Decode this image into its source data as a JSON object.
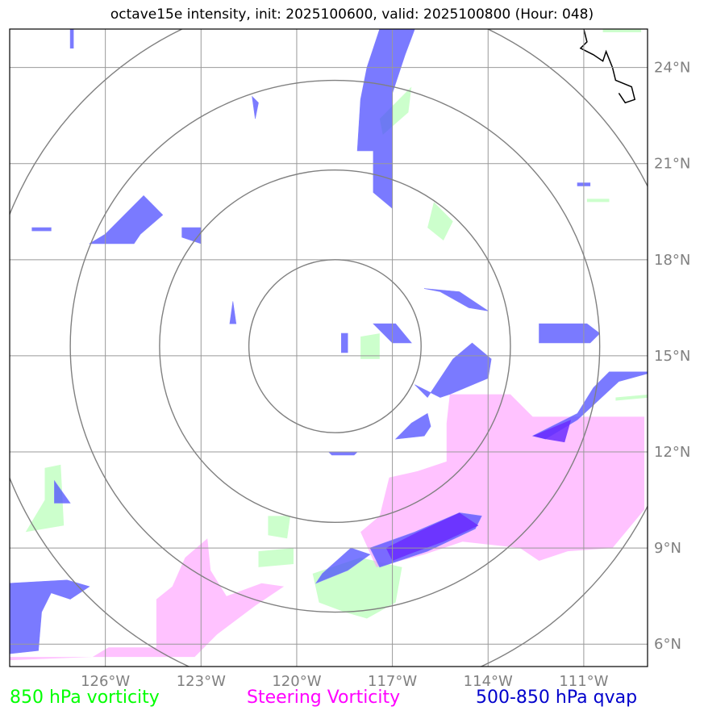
{
  "title": "octave15e intensity, init: 2025100600, valid: 2025100800 (Hour: 048)",
  "map": {
    "lon_range": [
      -129,
      -109
    ],
    "lat_range": [
      5.3,
      25.2
    ],
    "lon_ticks": [
      {
        "value": -126,
        "label": "126°W"
      },
      {
        "value": -123,
        "label": "123°W"
      },
      {
        "value": -120,
        "label": "120°W"
      },
      {
        "value": -117,
        "label": "117°W"
      },
      {
        "value": -114,
        "label": "114°W"
      },
      {
        "value": -111,
        "label": "111°W"
      }
    ],
    "lat_ticks": [
      {
        "value": 6,
        "label": "6°N"
      },
      {
        "value": 9,
        "label": "9°N"
      },
      {
        "value": 12,
        "label": "12°N"
      },
      {
        "value": 15,
        "label": "15°N"
      },
      {
        "value": 18,
        "label": "18°N"
      },
      {
        "value": 21,
        "label": "21°N"
      },
      {
        "value": 24,
        "label": "24°N"
      }
    ],
    "storm_center": {
      "lon": -118.8,
      "lat": 15.3
    },
    "range_rings_deg": [
      2.7,
      5.5,
      8.3,
      11.0
    ],
    "colors": {
      "vorticity_850": "#ccffcc",
      "steering_vorticity": "#ff99ff",
      "qvap": "#4d4dff",
      "overlap": "#6a2cff",
      "grid": "#999999",
      "ring": "#808080",
      "coast": "#000000"
    },
    "fields": {
      "vorticity_850": [
        [
          [
            -127.9,
            11.5
          ],
          [
            -127.4,
            11.6
          ],
          [
            -127.3,
            9.7
          ],
          [
            -128.5,
            9.5
          ],
          [
            -127.9,
            10.5
          ]
        ],
        [
          [
            -120.9,
            10.0
          ],
          [
            -120.2,
            10.0
          ],
          [
            -120.3,
            9.3
          ],
          [
            -120.9,
            9.4
          ]
        ],
        [
          [
            -121.2,
            8.9
          ],
          [
            -120.1,
            9.0
          ],
          [
            -120.1,
            8.5
          ],
          [
            -121.2,
            8.4
          ]
        ],
        [
          [
            -119.5,
            8.2
          ],
          [
            -118.0,
            8.7
          ],
          [
            -116.7,
            8.4
          ],
          [
            -116.9,
            7.3
          ],
          [
            -117.8,
            6.8
          ],
          [
            -118.5,
            7.0
          ],
          [
            -119.3,
            7.3
          ]
        ],
        [
          [
            -118.0,
            15.6
          ],
          [
            -117.4,
            15.7
          ],
          [
            -117.4,
            14.9
          ],
          [
            -118.0,
            14.9
          ]
        ],
        [
          [
            -117.4,
            22.4
          ],
          [
            -116.4,
            23.4
          ],
          [
            -116.5,
            22.6
          ],
          [
            -117.3,
            21.9
          ]
        ],
        [
          [
            -115.7,
            19.8
          ],
          [
            -115.1,
            19.2
          ],
          [
            -115.4,
            18.6
          ],
          [
            -115.9,
            19.0
          ]
        ],
        [
          [
            -110.9,
            19.9
          ],
          [
            -110.2,
            19.9
          ],
          [
            -110.2,
            19.8
          ],
          [
            -110.9,
            19.8
          ]
        ],
        [
          [
            -110.0,
            13.7
          ],
          [
            -108.9,
            13.8
          ],
          [
            -108.9,
            13.7
          ],
          [
            -110.0,
            13.6
          ]
        ],
        [
          [
            -110.4,
            25.2
          ],
          [
            -109.2,
            25.2
          ],
          [
            -109.2,
            25.1
          ],
          [
            -110.4,
            25.1
          ]
        ]
      ],
      "steering_vorticity": [
        [
          [
            -115.2,
            13.8
          ],
          [
            -113.3,
            13.8
          ],
          [
            -112.6,
            13.1
          ],
          [
            -109.1,
            13.1
          ],
          [
            -109.1,
            10.2
          ],
          [
            -110.1,
            9.0
          ],
          [
            -111.5,
            8.9
          ],
          [
            -112.4,
            8.6
          ],
          [
            -113.0,
            9.0
          ],
          [
            -114.8,
            9.2
          ],
          [
            -116.0,
            8.8
          ],
          [
            -117.5,
            8.4
          ],
          [
            -118.0,
            9.5
          ],
          [
            -117.4,
            10.0
          ],
          [
            -117.1,
            11.2
          ],
          [
            -116.2,
            11.4
          ],
          [
            -115.3,
            11.7
          ],
          [
            -115.3,
            12.9
          ]
        ],
        [
          [
            -129.0,
            5.6
          ],
          [
            -125.1,
            5.6
          ],
          [
            -123.2,
            5.6
          ],
          [
            -122.5,
            6.3
          ],
          [
            -121.3,
            7.2
          ],
          [
            -120.4,
            7.8
          ],
          [
            -121.1,
            7.9
          ],
          [
            -122.2,
            7.5
          ],
          [
            -122.7,
            8.3
          ],
          [
            -122.8,
            9.3
          ],
          [
            -123.5,
            8.7
          ],
          [
            -123.9,
            7.8
          ],
          [
            -124.4,
            7.4
          ],
          [
            -124.4,
            5.9
          ],
          [
            -125.9,
            5.9
          ],
          [
            -126.4,
            5.6
          ],
          [
            -129.0,
            5.5
          ]
        ]
      ],
      "qvap": [
        [
          [
            -117.4,
            25.2
          ],
          [
            -116.3,
            25.2
          ],
          [
            -116.6,
            24.4
          ],
          [
            -117.0,
            23.2
          ],
          [
            -117.0,
            19.6
          ],
          [
            -117.6,
            20.1
          ],
          [
            -117.6,
            21.4
          ],
          [
            -118.1,
            21.4
          ],
          [
            -118.0,
            23.0
          ],
          [
            -117.8,
            24.0
          ]
        ],
        [
          [
            -126.0,
            18.8
          ],
          [
            -124.8,
            20.0
          ],
          [
            -124.2,
            19.4
          ],
          [
            -124.9,
            18.8
          ],
          [
            -125.1,
            18.5
          ],
          [
            -126.5,
            18.5
          ]
        ],
        [
          [
            -116.3,
            14.1
          ],
          [
            -115.9,
            13.7
          ],
          [
            -115.1,
            14.9
          ],
          [
            -114.5,
            15.4
          ],
          [
            -113.9,
            14.9
          ],
          [
            -114.0,
            14.3
          ],
          [
            -115.2,
            13.8
          ],
          [
            -115.5,
            13.7
          ]
        ],
        [
          [
            -117.6,
            16.0
          ],
          [
            -116.9,
            16.0
          ],
          [
            -116.4,
            15.4
          ],
          [
            -117.0,
            15.4
          ]
        ],
        [
          [
            -116.0,
            17.1
          ],
          [
            -114.9,
            17.0
          ],
          [
            -114.0,
            16.4
          ],
          [
            -114.6,
            16.5
          ],
          [
            -115.5,
            17.0
          ]
        ],
        [
          [
            -112.4,
            16.0
          ],
          [
            -110.9,
            16.0
          ],
          [
            -110.5,
            15.7
          ],
          [
            -110.8,
            15.4
          ],
          [
            -112.4,
            15.4
          ]
        ],
        [
          [
            -112.6,
            12.5
          ],
          [
            -111.2,
            13.2
          ],
          [
            -110.7,
            14.0
          ],
          [
            -110.2,
            14.5
          ],
          [
            -109.6,
            14.5
          ],
          [
            -108.8,
            14.5
          ],
          [
            -109.9,
            14.2
          ],
          [
            -111.2,
            13.0
          ],
          [
            -112.2,
            12.4
          ]
        ],
        [
          [
            -116.4,
            12.9
          ],
          [
            -115.9,
            13.2
          ],
          [
            -115.8,
            12.8
          ],
          [
            -116.0,
            12.5
          ],
          [
            -116.9,
            12.4
          ]
        ],
        [
          [
            -119.0,
            12.0
          ],
          [
            -118.1,
            12.0
          ],
          [
            -118.2,
            11.9
          ],
          [
            -118.9,
            11.9
          ]
        ],
        [
          [
            -117.7,
            9.0
          ],
          [
            -117.4,
            8.4
          ],
          [
            -115.9,
            8.9
          ],
          [
            -114.4,
            9.6
          ],
          [
            -114.2,
            10.0
          ],
          [
            -114.9,
            10.1
          ],
          [
            -116.3,
            9.5
          ]
        ],
        [
          [
            -119.2,
            8.2
          ],
          [
            -118.3,
            9.0
          ],
          [
            -117.7,
            8.8
          ],
          [
            -118.4,
            8.3
          ],
          [
            -119.4,
            7.9
          ]
        ],
        [
          [
            -129.0,
            7.9
          ],
          [
            -127.2,
            8.0
          ],
          [
            -126.5,
            7.8
          ],
          [
            -127.1,
            7.4
          ],
          [
            -127.7,
            7.6
          ],
          [
            -128.0,
            7.0
          ],
          [
            -128.1,
            5.8
          ],
          [
            -129.0,
            5.7
          ]
        ],
        [
          [
            -127.6,
            11.1
          ],
          [
            -127.1,
            10.4
          ],
          [
            -127.6,
            10.4
          ]
        ],
        [
          [
            -122.0,
            16.7
          ],
          [
            -121.9,
            16.0
          ],
          [
            -122.1,
            16.0
          ]
        ],
        [
          [
            -121.4,
            23.1
          ],
          [
            -121.2,
            22.9
          ],
          [
            -121.3,
            22.4
          ]
        ],
        [
          [
            -123.6,
            19.0
          ],
          [
            -123.0,
            19.0
          ],
          [
            -123.0,
            18.5
          ],
          [
            -123.6,
            18.7
          ]
        ],
        [
          [
            -118.6,
            15.7
          ],
          [
            -118.4,
            15.7
          ],
          [
            -118.4,
            15.1
          ],
          [
            -118.6,
            15.1
          ]
        ],
        [
          [
            -111.2,
            20.4
          ],
          [
            -110.8,
            20.4
          ],
          [
            -110.8,
            20.3
          ],
          [
            -111.2,
            20.3
          ]
        ],
        [
          [
            -128.3,
            19.0
          ],
          [
            -127.7,
            19.0
          ],
          [
            -127.7,
            18.9
          ],
          [
            -128.3,
            18.9
          ]
        ],
        [
          [
            -127.1,
            24.6
          ],
          [
            -127.0,
            24.6
          ],
          [
            -127.0,
            25.2
          ],
          [
            -127.1,
            25.2
          ]
        ]
      ],
      "overlap": [
        [
          [
            -117.2,
            9.0
          ],
          [
            -116.2,
            9.5
          ],
          [
            -114.9,
            10.1
          ],
          [
            -114.3,
            9.7
          ],
          [
            -115.4,
            9.2
          ],
          [
            -116.5,
            8.8
          ],
          [
            -117.0,
            8.6
          ]
        ],
        [
          [
            -112.6,
            12.5
          ],
          [
            -111.4,
            13.0
          ],
          [
            -111.6,
            12.3
          ],
          [
            -112.2,
            12.4
          ]
        ]
      ],
      "coast": [
        [
          [
            -111.0,
            25.2
          ],
          [
            -110.9,
            24.8
          ],
          [
            -111.1,
            24.6
          ],
          [
            -110.7,
            24.4
          ],
          [
            -110.4,
            24.2
          ],
          [
            -110.3,
            24.5
          ],
          [
            -110.1,
            24.0
          ],
          [
            -110.0,
            23.6
          ],
          [
            -109.5,
            23.4
          ],
          [
            -109.4,
            23.0
          ],
          [
            -109.7,
            22.9
          ],
          [
            -109.9,
            23.2
          ]
        ]
      ]
    }
  },
  "legend": {
    "vorticity": {
      "label": "850 hPa vorticity",
      "color": "#00ff00"
    },
    "steering": {
      "label": "Steering Vorticity",
      "color": "#ff00ff"
    },
    "qvap": {
      "label": "500-850 hPa qvap",
      "color": "#0000cc"
    }
  }
}
